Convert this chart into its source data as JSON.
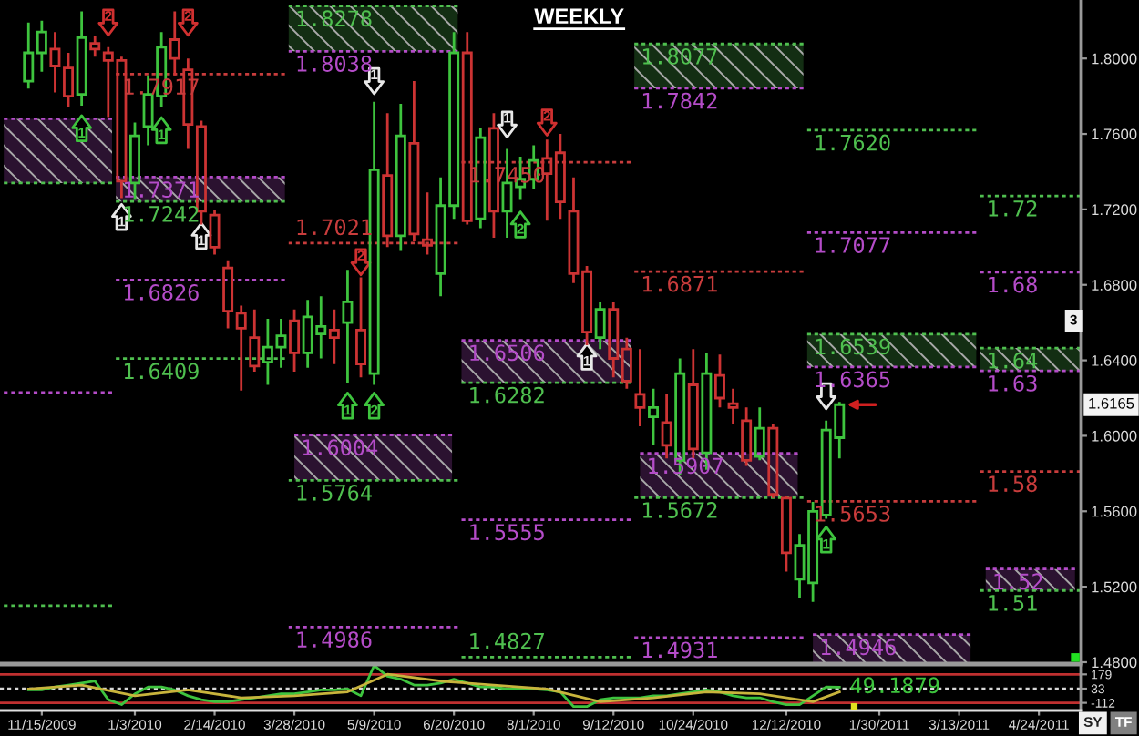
{
  "chart_data": [
    {
      "type": "candlestick",
      "title": "WEEKLY",
      "xlim": [
        "2009-10-24",
        "2011-05-16"
      ],
      "ylim": [
        1.4795,
        1.831
      ],
      "yticks": [
        {
          "value": 1.8,
          "label": "1.8000"
        },
        {
          "value": 1.76,
          "label": "1.7600"
        },
        {
          "value": 1.72,
          "label": "1.7200"
        },
        {
          "value": 1.68,
          "label": "1.6800"
        },
        {
          "value": 1.64,
          "label": "1.6400"
        },
        {
          "value": 1.6,
          "label": "1.6000"
        },
        {
          "value": 1.56,
          "label": "1.5600"
        },
        {
          "value": 1.52,
          "label": "1.5200"
        },
        {
          "value": 1.48,
          "label": "1.4800"
        }
      ],
      "tick_labels": "y",
      "line_style": "dotted",
      "annotations": [
        {
          "text": "1.6165",
          "y": 1.6165
        },
        "3",
        {
          "text": "1.72",
          "x": "2011-03-24",
          "y": 1.7271
        },
        {
          "text": "1.68",
          "x": "2011-03-24",
          "y": 1.6867
        },
        {
          "text": "1.64",
          "x": "2011-03-24",
          "y": 1.6465
        },
        {
          "text": "1.63",
          "x": "2011-03-24",
          "y": 1.6344
        },
        {
          "text": "1.58",
          "x": "2011-03-24",
          "y": 1.5811
        },
        {
          "text": "1.52",
          "x": "2011-03-27",
          "y": 1.5294
        },
        {
          "text": "1.51",
          "x": "2011-03-24",
          "y": 1.518
        },
        {
          "text": "1",
          "x": "2009-12-27",
          "y": 1.716
        },
        {
          "text": "1",
          "x": "2010-02-07",
          "y": 1.706
        },
        {
          "text": "1",
          "x": "2010-05-09",
          "y": 1.788
        },
        {
          "text": "1",
          "x": "2010-07-18",
          "y": 1.765
        },
        {
          "text": "1",
          "x": "2010-08-29",
          "y": 1.642
        },
        {
          "text": "1",
          "x": "2009-12-06",
          "y": 1.763
        },
        {
          "text": "1",
          "x": "2010-01-17",
          "y": 1.762
        },
        {
          "text": "1",
          "x": "2010-04-25",
          "y": 1.616
        },
        {
          "text": "2",
          "x": "2010-05-09",
          "y": 1.616
        },
        {
          "text": "2",
          "x": "2010-07-25",
          "y": 1.712
        },
        {
          "text": "1",
          "x": "2011-01-02",
          "y": 1.545
        },
        {
          "text": "2",
          "x": "2009-12-20",
          "y": 1.819
        },
        {
          "text": "2",
          "x": "2010-01-31",
          "y": 1.819
        },
        {
          "text": "2",
          "x": "2010-05-02",
          "y": 1.692
        },
        {
          "text": "2",
          "x": "2010-08-08",
          "y": 1.766
        }
      ],
      "series": [
        {
          "type": "candlestick",
          "x": [
            "2009-11-08",
            "2009-11-15",
            "2009-11-22",
            "2009-11-29",
            "2009-12-06",
            "2009-12-13",
            "2009-12-20",
            "2009-12-27",
            "2010-01-03",
            "2010-01-10",
            "2010-01-17",
            "2010-01-24",
            "2010-01-31",
            "2010-02-07",
            "2010-02-14",
            "2010-02-21",
            "2010-02-28",
            "2010-03-07",
            "2010-03-14",
            "2010-03-21",
            "2010-03-28",
            "2010-04-04",
            "2010-04-11",
            "2010-04-18",
            "2010-04-25",
            "2010-05-02",
            "2010-05-09",
            "2010-05-16",
            "2010-05-23",
            "2010-05-30",
            "2010-06-06",
            "2010-06-13",
            "2010-06-20",
            "2010-06-27",
            "2010-07-04",
            "2010-07-11",
            "2010-07-18",
            "2010-07-25",
            "2010-08-01",
            "2010-08-08",
            "2010-08-15",
            "2010-08-22",
            "2010-08-29",
            "2010-09-05",
            "2010-09-12",
            "2010-09-19",
            "2010-09-26",
            "2010-10-03",
            "2010-10-10",
            "2010-10-17",
            "2010-10-24",
            "2010-10-31",
            "2010-11-07",
            "2010-11-14",
            "2010-11-21",
            "2010-11-28",
            "2010-12-05",
            "2010-12-12",
            "2010-12-19",
            "2010-12-26",
            "2011-01-02",
            "2011-01-09"
          ],
          "ohlc": [
            [
              1.788,
              1.819,
              1.784,
              1.803
            ],
            [
              1.803,
              1.82,
              1.793,
              1.814
            ],
            [
              1.805,
              1.814,
              1.782,
              1.796
            ],
            [
              1.795,
              1.803,
              1.774,
              1.78
            ],
            [
              1.781,
              1.825,
              1.775,
              1.811
            ],
            [
              1.808,
              1.812,
              1.801,
              1.805
            ],
            [
              1.803,
              1.806,
              1.769,
              1.799
            ],
            [
              1.799,
              1.801,
              1.726,
              1.735
            ],
            [
              1.734,
              1.766,
              1.725,
              1.759
            ],
            [
              1.764,
              1.791,
              1.754,
              1.781
            ],
            [
              1.78,
              1.814,
              1.774,
              1.806
            ],
            [
              1.81,
              1.825,
              1.791,
              1.8
            ],
            [
              1.794,
              1.8,
              1.752,
              1.765
            ],
            [
              1.764,
              1.767,
              1.712,
              1.719
            ],
            [
              1.717,
              1.72,
              1.696,
              1.7
            ],
            [
              1.689,
              1.693,
              1.657,
              1.666
            ],
            [
              1.665,
              1.669,
              1.624,
              1.657
            ],
            [
              1.652,
              1.667,
              1.634,
              1.637
            ],
            [
              1.639,
              1.662,
              1.627,
              1.647
            ],
            [
              1.647,
              1.662,
              1.636,
              1.653
            ],
            [
              1.661,
              1.667,
              1.634,
              1.644
            ],
            [
              1.644,
              1.672,
              1.636,
              1.663
            ],
            [
              1.654,
              1.674,
              1.641,
              1.658
            ],
            [
              1.656,
              1.667,
              1.638,
              1.652
            ],
            [
              1.66,
              1.688,
              1.628,
              1.671
            ],
            [
              1.656,
              1.684,
              1.631,
              1.638
            ],
            [
              1.633,
              1.777,
              1.627,
              1.741
            ],
            [
              1.738,
              1.771,
              1.7,
              1.706
            ],
            [
              1.706,
              1.776,
              1.698,
              1.759
            ],
            [
              1.755,
              1.788,
              1.703,
              1.707
            ],
            [
              1.704,
              1.729,
              1.696,
              1.701
            ],
            [
              1.686,
              1.737,
              1.674,
              1.722
            ],
            [
              1.722,
              1.814,
              1.715,
              1.803
            ],
            [
              1.803,
              1.814,
              1.712,
              1.714
            ],
            [
              1.715,
              1.763,
              1.71,
              1.758
            ],
            [
              1.763,
              1.771,
              1.705,
              1.719
            ],
            [
              1.719,
              1.752,
              1.705,
              1.734
            ],
            [
              1.732,
              1.748,
              1.725,
              1.736
            ],
            [
              1.736,
              1.754,
              1.731,
              1.746
            ],
            [
              1.747,
              1.757,
              1.714,
              1.739
            ],
            [
              1.75,
              1.76,
              1.715,
              1.724
            ],
            [
              1.719,
              1.737,
              1.681,
              1.686
            ],
            [
              1.687,
              1.69,
              1.648,
              1.655
            ],
            [
              1.652,
              1.671,
              1.646,
              1.667
            ],
            [
              1.667,
              1.671,
              1.631,
              1.641
            ],
            [
              1.646,
              1.652,
              1.625,
              1.629
            ],
            [
              1.622,
              1.646,
              1.605,
              1.615
            ],
            [
              1.61,
              1.625,
              1.595,
              1.615
            ],
            [
              1.607,
              1.622,
              1.588,
              1.595
            ],
            [
              1.587,
              1.641,
              1.579,
              1.633
            ],
            [
              1.627,
              1.646,
              1.588,
              1.593
            ],
            [
              1.591,
              1.644,
              1.582,
              1.633
            ],
            [
              1.632,
              1.643,
              1.615,
              1.62
            ],
            [
              1.617,
              1.625,
              1.606,
              1.615
            ],
            [
              1.608,
              1.615,
              1.584,
              1.587
            ],
            [
              1.589,
              1.615,
              1.587,
              1.604
            ],
            [
              1.604,
              1.606,
              1.567,
              1.569
            ],
            [
              1.567,
              1.568,
              1.528,
              1.538
            ],
            [
              1.524,
              1.548,
              1.514,
              1.542
            ],
            [
              1.522,
              1.565,
              1.512,
              1.56
            ],
            [
              1.558,
              1.608,
              1.556,
              1.603
            ],
            [
              1.599,
              1.618,
              1.588,
              1.6165
            ]
          ],
          "colors": [
            "#3ec43e",
            "#3ec43e",
            "#cc3333",
            "#cc3333",
            "#3ec43e",
            "#cc3333",
            "#cc3333",
            "#cc3333",
            "#3ec43e",
            "#3ec43e",
            "#3ec43e",
            "#cc3333",
            "#cc3333",
            "#cc3333",
            "#cc3333",
            "#cc3333",
            "#cc3333",
            "#cc3333",
            "#3ec43e",
            "#3ec43e",
            "#cc3333",
            "#3ec43e",
            "#3ec43e",
            "#cc3333",
            "#3ec43e",
            "#cc3333",
            "#3ec43e",
            "#cc3333",
            "#3ec43e",
            "#cc3333",
            "#cc3333",
            "#3ec43e",
            "#3ec43e",
            "#cc3333",
            "#3ec43e",
            "#cc3333",
            "#3ec43e",
            "#3ec43e",
            "#3ec43e",
            "#cc3333",
            "#cc3333",
            "#cc3333",
            "#cc3333",
            "#3ec43e",
            "#cc3333",
            "#cc3333",
            "#cc3333",
            "#3ec43e",
            "#cc3333",
            "#3ec43e",
            "#cc3333",
            "#3ec43e",
            "#cc3333",
            "#cc3333",
            "#cc3333",
            "#3ec43e",
            "#cc3333",
            "#cc3333",
            "#3ec43e",
            "#3ec43e",
            "#3ec43e",
            "#3ec43e"
          ]
        },
        {
          "type": "line",
          "x": [
            "2009-10-26",
            "2009-12-22"
          ],
          "values": [
            1.768,
            1.768
          ],
          "lower": [
            1.734,
            1.734
          ],
          "upper": [
            1.768,
            1.768
          ],
          "color": "#b44cc8"
        },
        {
          "type": "line",
          "x": [
            "2009-10-26",
            "2009-12-22"
          ],
          "values": [
            1.734,
            1.734
          ],
          "color": "#4fbf4f"
        },
        {
          "type": "line",
          "x": [
            "2009-10-26",
            "2009-12-22"
          ],
          "values": [
            1.623,
            1.623
          ],
          "color": "#b44cc8"
        },
        {
          "type": "line",
          "x": [
            "2009-10-26",
            "2009-12-22"
          ],
          "values": [
            1.51,
            1.51
          ],
          "color": "#4fbf4f"
        },
        {
          "type": "line",
          "x": [
            "2009-12-24",
            "2010-03-23"
          ],
          "values": [
            1.7917,
            1.7917
          ],
          "value_labels": [
            "1.7917",
            null
          ],
          "color": "#c83c3c"
        },
        {
          "type": "line",
          "x": [
            "2009-12-24",
            "2010-03-23"
          ],
          "values": [
            1.7371,
            1.7371
          ],
          "lower": [
            1.7242,
            1.7242
          ],
          "upper": [
            1.7371,
            1.7371
          ],
          "value_labels": [
            "1.7371",
            null
          ],
          "color": "#b44cc8"
        },
        {
          "type": "line",
          "x": [
            "2009-12-24",
            "2010-03-23"
          ],
          "values": [
            1.7242,
            1.7242
          ],
          "value_labels": [
            "1.7242",
            null
          ],
          "color": "#4fbf4f"
        },
        {
          "type": "line",
          "x": [
            "2009-12-24",
            "2010-03-23"
          ],
          "values": [
            1.6826,
            1.6826
          ],
          "value_labels": [
            "1.6826",
            null
          ],
          "color": "#b44cc8"
        },
        {
          "type": "line",
          "x": [
            "2009-12-24",
            "2010-03-23"
          ],
          "values": [
            1.6409,
            1.6409
          ],
          "value_labels": [
            "1.6409",
            null
          ],
          "color": "#4fbf4f"
        },
        {
          "type": "line",
          "x": [
            "2010-03-25",
            "2010-06-22"
          ],
          "values": [
            1.8278,
            1.8278
          ],
          "lower": [
            1.8038,
            1.8038
          ],
          "upper": [
            1.8278,
            1.8278
          ],
          "value_labels": [
            "1.8278",
            null
          ],
          "color": "#4fbf4f"
        },
        {
          "type": "line",
          "x": [
            "2010-03-25",
            "2010-06-22"
          ],
          "values": [
            1.8038,
            1.8038
          ],
          "value_labels": [
            "1.8038",
            null
          ],
          "color": "#b44cc8"
        },
        {
          "type": "line",
          "x": [
            "2010-03-25",
            "2010-06-22"
          ],
          "values": [
            1.7021,
            1.7021
          ],
          "value_labels": [
            "1.7021",
            null
          ],
          "color": "#c83c3c"
        },
        {
          "type": "line",
          "x": [
            "2010-03-28",
            "2010-06-19"
          ],
          "values": [
            1.6004,
            1.6004
          ],
          "lower": [
            1.5764,
            1.5764
          ],
          "upper": [
            1.6004,
            1.6004
          ],
          "value_labels": [
            "1.6004",
            null
          ],
          "color": "#b44cc8"
        },
        {
          "type": "line",
          "x": [
            "2010-03-25",
            "2010-06-22"
          ],
          "values": [
            1.5764,
            1.5764
          ],
          "value_labels": [
            "1.5764",
            null
          ],
          "color": "#4fbf4f"
        },
        {
          "type": "line",
          "x": [
            "2010-03-25",
            "2010-06-22"
          ],
          "values": [
            1.4986,
            1.4986
          ],
          "value_labels": [
            "1.4986",
            null
          ],
          "color": "#b44cc8"
        },
        {
          "type": "line",
          "x": [
            "2010-06-24",
            "2010-09-21"
          ],
          "values": [
            1.745,
            1.745
          ],
          "value_labels": [
            "1.7450",
            null
          ],
          "color": "#c83c3c"
        },
        {
          "type": "line",
          "x": [
            "2010-06-24",
            "2010-09-21"
          ],
          "values": [
            1.6506,
            1.6506
          ],
          "lower": [
            1.6282,
            1.6282
          ],
          "upper": [
            1.6506,
            1.6506
          ],
          "value_labels": [
            "1.6506",
            null
          ],
          "color": "#b44cc8"
        },
        {
          "type": "line",
          "x": [
            "2010-06-24",
            "2010-09-21"
          ],
          "values": [
            1.6282,
            1.6282
          ],
          "value_labels": [
            "1.6282",
            null
          ],
          "color": "#4fbf4f"
        },
        {
          "type": "line",
          "x": [
            "2010-06-24",
            "2010-09-21"
          ],
          "values": [
            1.5555,
            1.5555
          ],
          "value_labels": [
            "1.5555",
            null
          ],
          "color": "#b44cc8"
        },
        {
          "type": "line",
          "x": [
            "2010-06-24",
            "2010-09-21"
          ],
          "values": [
            1.4827,
            1.4827
          ],
          "value_labels": [
            "1.4827",
            null
          ],
          "color": "#4fbf4f"
        },
        {
          "type": "line",
          "x": [
            "2010-09-23",
            "2010-12-21"
          ],
          "values": [
            1.8077,
            1.8077
          ],
          "lower": [
            1.7842,
            1.7842
          ],
          "upper": [
            1.8077,
            1.8077
          ],
          "value_labels": [
            "1.8077",
            null
          ],
          "color": "#4fbf4f"
        },
        {
          "type": "line",
          "x": [
            "2010-09-23",
            "2010-12-21"
          ],
          "values": [
            1.7842,
            1.7842
          ],
          "value_labels": [
            "1.7842",
            null
          ],
          "color": "#b44cc8"
        },
        {
          "type": "line",
          "x": [
            "2010-09-23",
            "2010-12-21"
          ],
          "values": [
            1.6871,
            1.6871
          ],
          "value_labels": [
            "1.6871",
            null
          ],
          "color": "#c83c3c"
        },
        {
          "type": "line",
          "x": [
            "2010-09-26",
            "2010-12-18"
          ],
          "values": [
            1.5907,
            1.5907
          ],
          "lower": [
            1.5672,
            1.5672
          ],
          "upper": [
            1.5907,
            1.5907
          ],
          "value_labels": [
            "1.5907",
            null
          ],
          "color": "#b44cc8"
        },
        {
          "type": "line",
          "x": [
            "2010-09-23",
            "2010-12-21"
          ],
          "values": [
            1.5672,
            1.5672
          ],
          "value_labels": [
            "1.5672",
            null
          ],
          "color": "#4fbf4f"
        },
        {
          "type": "line",
          "x": [
            "2010-09-23",
            "2010-12-21"
          ],
          "values": [
            1.4931,
            1.4931
          ],
          "value_labels": [
            "1.4931",
            null
          ],
          "color": "#b44cc8"
        },
        {
          "type": "line",
          "x": [
            "2010-12-23",
            "2011-03-22"
          ],
          "values": [
            1.762,
            1.762
          ],
          "value_labels": [
            "1.7620",
            null
          ],
          "color": "#4fbf4f"
        },
        {
          "type": "line",
          "x": [
            "2010-12-23",
            "2011-03-22"
          ],
          "values": [
            1.7077,
            1.7077
          ],
          "value_labels": [
            "1.7077",
            null
          ],
          "color": "#b44cc8"
        },
        {
          "type": "line",
          "x": [
            "2010-12-23",
            "2011-03-22"
          ],
          "values": [
            1.6539,
            1.6539
          ],
          "lower": [
            1.6365,
            1.6365
          ],
          "upper": [
            1.6539,
            1.6539
          ],
          "value_labels": [
            "1.6539",
            null
          ],
          "color": "#4fbf4f"
        },
        {
          "type": "line",
          "x": [
            "2010-12-23",
            "2011-03-22"
          ],
          "values": [
            1.6365,
            1.6365
          ],
          "value_labels": [
            "1.6365",
            null
          ],
          "color": "#b44cc8"
        },
        {
          "type": "line",
          "x": [
            "2010-12-23",
            "2011-03-22"
          ],
          "values": [
            1.5653,
            1.5653
          ],
          "value_labels": [
            "1.5653",
            null
          ],
          "color": "#c83c3c"
        },
        {
          "type": "line",
          "x": [
            "2010-12-26",
            "2011-03-19"
          ],
          "values": [
            1.4946,
            1.4946
          ],
          "lower": [
            1.4795,
            1.4795
          ],
          "upper": [
            1.4946,
            1.4946
          ],
          "value_labels": [
            "1.4946",
            null
          ],
          "color": "#b44cc8"
        },
        {
          "type": "line",
          "x": [
            "2011-03-24",
            "2011-05-16"
          ],
          "values": [
            1.7271,
            1.7271
          ],
          "color": "#4fbf4f"
        },
        {
          "type": "line",
          "x": [
            "2011-03-24",
            "2011-05-16"
          ],
          "values": [
            1.6867,
            1.6867
          ],
          "color": "#b44cc8"
        },
        {
          "type": "line",
          "x": [
            "2011-03-24",
            "2011-05-16"
          ],
          "values": [
            1.6465,
            1.6465
          ],
          "lower": [
            1.6344,
            1.6344
          ],
          "upper": [
            1.6465,
            1.6465
          ],
          "color": "#4fbf4f"
        },
        {
          "type": "line",
          "x": [
            "2011-03-24",
            "2011-05-16"
          ],
          "values": [
            1.6344,
            1.6344
          ],
          "color": "#b44cc8"
        },
        {
          "type": "line",
          "x": [
            "2011-03-24",
            "2011-05-16"
          ],
          "values": [
            1.5811,
            1.5811
          ],
          "color": "#c83c3c"
        },
        {
          "type": "line",
          "x": [
            "2011-03-27",
            "2011-05-13"
          ],
          "values": [
            1.5294,
            1.5294
          ],
          "lower": [
            1.518,
            1.518
          ],
          "upper": [
            1.5294,
            1.5294
          ],
          "color": "#b44cc8"
        },
        {
          "type": "line",
          "x": [
            "2011-03-24",
            "2011-05-16"
          ],
          "values": [
            1.518,
            1.518
          ],
          "color": "#4fbf4f"
        },
        {
          "type": "scatter",
          "marker": "triangle",
          "color": "#e8e8e8",
          "x": [
            "2009-12-27",
            "2010-02-07",
            "2010-05-09",
            "2010-07-18",
            "2010-08-29",
            "2011-01-02"
          ],
          "values": [
            1.716,
            1.706,
            1.788,
            1.765,
            1.642,
            1.621
          ]
        },
        {
          "type": "scatter",
          "marker": "triangle",
          "color": "#3ec43e",
          "x": [
            "2009-12-06",
            "2010-01-17",
            "2010-04-25",
            "2010-05-09",
            "2010-07-25",
            "2011-01-02"
          ],
          "values": [
            1.763,
            1.762,
            1.616,
            1.616,
            1.712,
            1.545
          ]
        },
        {
          "type": "scatter",
          "marker": "triangle",
          "color": "#d03030",
          "x": [
            "2009-12-20",
            "2010-01-31",
            "2010-05-02",
            "2010-08-08"
          ],
          "values": [
            1.819,
            1.819,
            1.692,
            1.766
          ]
        }
      ]
    },
    {
      "type": "line",
      "xlim": [
        "2009-10-24",
        "2011-05-16"
      ],
      "ylim": [
        -190,
        275
      ],
      "yticks": [
        179,
        33,
        -112
      ],
      "xticks": [
        {
          "value": "2009-11-15",
          "label": "11/15/2009"
        },
        {
          "value": "2010-01-03",
          "label": "1/3/2010"
        },
        {
          "value": "2010-02-14",
          "label": "2/14/2010"
        },
        {
          "value": "2010-03-28",
          "label": "3/28/2010"
        },
        {
          "value": "2010-05-09",
          "label": "5/9/2010"
        },
        {
          "value": "2010-06-20",
          "label": "6/20/2010"
        },
        {
          "value": "2010-08-01",
          "label": "8/1/2010"
        },
        {
          "value": "2010-09-12",
          "label": "9/12/2010"
        },
        {
          "value": "2010-10-24",
          "label": "10/24/2010"
        },
        {
          "value": "2010-12-12",
          "label": "12/12/2010"
        },
        {
          "value": "2011-01-30",
          "label": "1/30/2011"
        },
        {
          "value": "2011-03-13",
          "label": "3/13/2011"
        },
        {
          "value": "2011-04-24",
          "label": "4/24/2011"
        }
      ],
      "ref_lines": [
        {
          "axis": "y",
          "value": 179,
          "color": "#c03030"
        },
        {
          "axis": "y",
          "value": 33,
          "color": "#d8d8d8",
          "line_style": "dotted"
        },
        {
          "axis": "y",
          "value": -112,
          "color": "#c03030"
        }
      ],
      "annotations": [
        "SY",
        "TF"
      ],
      "series": [
        {
          "color": "#3ec43e",
          "x": [
            "2009-11-08",
            "2009-11-15",
            "2009-11-22",
            "2009-11-29",
            "2009-12-06",
            "2009-12-13",
            "2009-12-20",
            "2009-12-27",
            "2010-01-03",
            "2010-01-10",
            "2010-01-17",
            "2010-01-24",
            "2010-01-31",
            "2010-02-07",
            "2010-02-14",
            "2010-02-21",
            "2010-02-28",
            "2010-03-07",
            "2010-03-14",
            "2010-03-21",
            "2010-03-28",
            "2010-04-04",
            "2010-04-11",
            "2010-04-18",
            "2010-04-25",
            "2010-05-02",
            "2010-05-09",
            "2010-05-16",
            "2010-05-23",
            "2010-05-30",
            "2010-06-06",
            "2010-06-13",
            "2010-06-20",
            "2010-06-27",
            "2010-07-04",
            "2010-07-11",
            "2010-07-18",
            "2010-07-25",
            "2010-08-01",
            "2010-08-08",
            "2010-08-15",
            "2010-08-22",
            "2010-08-29",
            "2010-09-05",
            "2010-09-12",
            "2010-09-19",
            "2010-09-26",
            "2010-10-03",
            "2010-10-10",
            "2010-10-17",
            "2010-10-24",
            "2010-10-31",
            "2010-11-07",
            "2010-11-14",
            "2010-11-21",
            "2010-11-28",
            "2010-12-05",
            "2010-12-12",
            "2010-12-19",
            "2010-12-26",
            "2011-01-02",
            "2011-01-09"
          ],
          "values": [
            20,
            20,
            50,
            70,
            90,
            110,
            -80,
            -130,
            -20,
            50,
            50,
            20,
            -40,
            -80,
            -100,
            -100,
            -80,
            -60,
            -40,
            -20,
            -20,
            0,
            20,
            20,
            30,
            -40,
            270,
            160,
            130,
            70,
            70,
            90,
            130,
            90,
            50,
            50,
            30,
            30,
            30,
            20,
            0,
            -150,
            -150,
            -80,
            -60,
            -60,
            -60,
            -40,
            -40,
            -20,
            0,
            20,
            0,
            -40,
            -60,
            -60,
            -100,
            -130,
            -130,
            -40,
            50,
            49.1879
          ],
          "value_labels": [
            null,
            null,
            null,
            null,
            null,
            null,
            null,
            null,
            null,
            null,
            null,
            null,
            null,
            null,
            null,
            null,
            null,
            null,
            null,
            null,
            null,
            null,
            null,
            null,
            null,
            null,
            null,
            null,
            null,
            null,
            null,
            null,
            null,
            null,
            null,
            null,
            null,
            null,
            null,
            null,
            null,
            null,
            null,
            null,
            null,
            null,
            null,
            null,
            null,
            null,
            null,
            null,
            null,
            null,
            null,
            null,
            null,
            null,
            null,
            null,
            null,
            "49.1879"
          ]
        },
        {
          "color": "#c8b43c",
          "x": [
            "2009-11-08",
            "2009-12-06",
            "2010-01-03",
            "2010-01-31",
            "2010-02-28",
            "2010-03-28",
            "2010-04-25",
            "2010-05-16",
            "2010-06-13",
            "2010-07-11",
            "2010-08-08",
            "2010-09-05",
            "2010-10-03",
            "2010-10-31",
            "2010-11-28",
            "2010-12-26",
            "2011-01-09"
          ],
          "values": [
            30,
            70,
            -40,
            20,
            -60,
            -40,
            0,
            180,
            110,
            70,
            30,
            -100,
            -60,
            0,
            -20,
            -100,
            0
          ]
        }
      ]
    }
  ]
}
